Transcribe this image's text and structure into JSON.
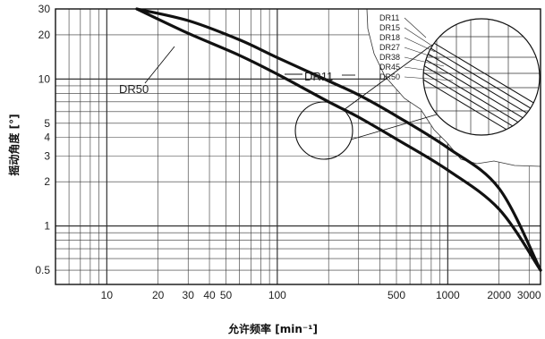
{
  "chart_data": {
    "type": "line",
    "title": "",
    "xlabel": "允许频率 [min⁻¹]",
    "ylabel": "摇动角度 [°]",
    "x_scale": "log",
    "y_scale": "log",
    "xlim": [
      5,
      3500
    ],
    "ylim": [
      0.4,
      30
    ],
    "grid": true,
    "x_ticks": [
      10,
      20,
      30,
      40,
      50,
      100,
      500,
      1000,
      2000,
      3000
    ],
    "y_ticks": [
      0.5,
      1,
      2,
      3,
      4,
      5,
      10,
      20,
      30
    ],
    "series": [
      {
        "name": "DR11",
        "x": [
          15,
          30,
          60,
          100,
          200,
          300,
          500,
          1000,
          2000,
          3500
        ],
        "y": [
          30,
          25,
          18.5,
          14,
          9.7,
          7.8,
          5.6,
          3.4,
          1.8,
          0.5
        ]
      },
      {
        "name": "DR50",
        "x": [
          15,
          30,
          60,
          100,
          200,
          300,
          500,
          1000,
          2000,
          3500
        ],
        "y": [
          30,
          20.5,
          14.5,
          10.8,
          7,
          5.5,
          3.9,
          2.4,
          1.3,
          0.5
        ]
      }
    ],
    "annotations": {
      "label_left": "DR50",
      "label_right": "DR11",
      "inset_labels": [
        "DR11",
        "DR15",
        "DR18",
        "DR27",
        "DR38",
        "DR45",
        "DR50"
      ]
    }
  }
}
